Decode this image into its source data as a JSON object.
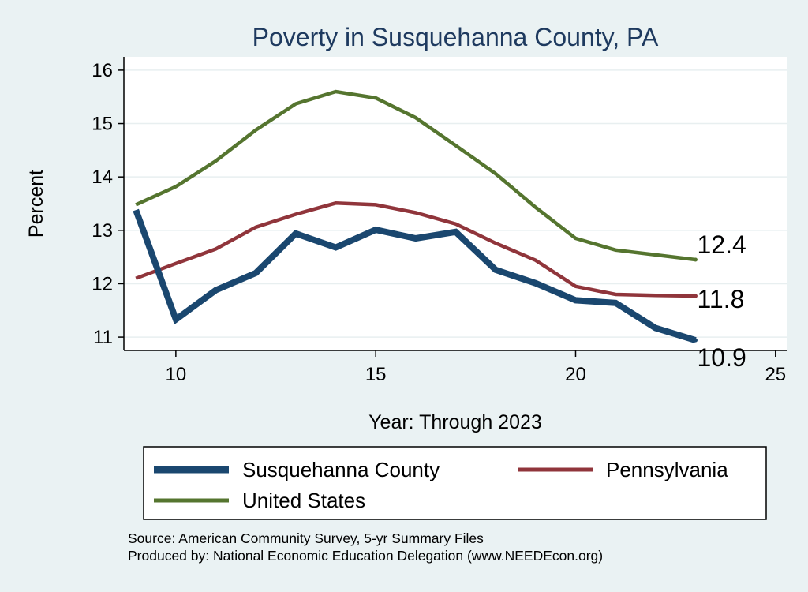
{
  "chart_data": {
    "type": "line",
    "title": "Poverty in Susquehanna County, PA",
    "xlabel": "Year: Through 2023",
    "ylabel": "Percent",
    "xlim": [
      8.7,
      25.3
    ],
    "ylim": [
      10.75,
      16.25
    ],
    "xticks": [
      10,
      15,
      20,
      25
    ],
    "yticks": [
      11,
      12,
      13,
      14,
      15,
      16
    ],
    "grid": true,
    "legend_position": "bottom",
    "series": [
      {
        "name": "Susquehanna County",
        "color": "#1a476f",
        "x": [
          9,
          10,
          11,
          12,
          13,
          14,
          15,
          16,
          17,
          18,
          19,
          20,
          21,
          22,
          23
        ],
        "values": [
          13.38,
          11.33,
          11.88,
          12.2,
          12.94,
          12.68,
          13.01,
          12.85,
          12.97,
          12.26,
          12.01,
          11.69,
          11.64,
          11.17,
          10.94
        ],
        "end_label": "10.9"
      },
      {
        "name": "Pennsylvania",
        "color": "#90353b",
        "x": [
          9,
          10,
          11,
          12,
          13,
          14,
          15,
          16,
          17,
          18,
          19,
          20,
          21,
          22,
          23
        ],
        "values": [
          12.1,
          12.38,
          12.65,
          13.06,
          13.3,
          13.51,
          13.48,
          13.33,
          13.12,
          12.76,
          12.44,
          11.95,
          11.8,
          11.78,
          11.77
        ],
        "end_label": "11.8"
      },
      {
        "name": "United States",
        "color": "#55752f",
        "x": [
          9,
          10,
          11,
          12,
          13,
          14,
          15,
          16,
          17,
          18,
          19,
          20,
          21,
          22,
          23
        ],
        "values": [
          13.48,
          13.82,
          14.3,
          14.88,
          15.37,
          15.6,
          15.48,
          15.11,
          14.59,
          14.06,
          13.43,
          12.85,
          12.63,
          12.54,
          12.45
        ],
        "end_label": "12.4"
      }
    ],
    "source_lines": [
      "Source: American Community Survey, 5-yr Summary Files",
      "Produced by: National Economic Education Delegation (www.NEEDEcon.org)"
    ]
  }
}
